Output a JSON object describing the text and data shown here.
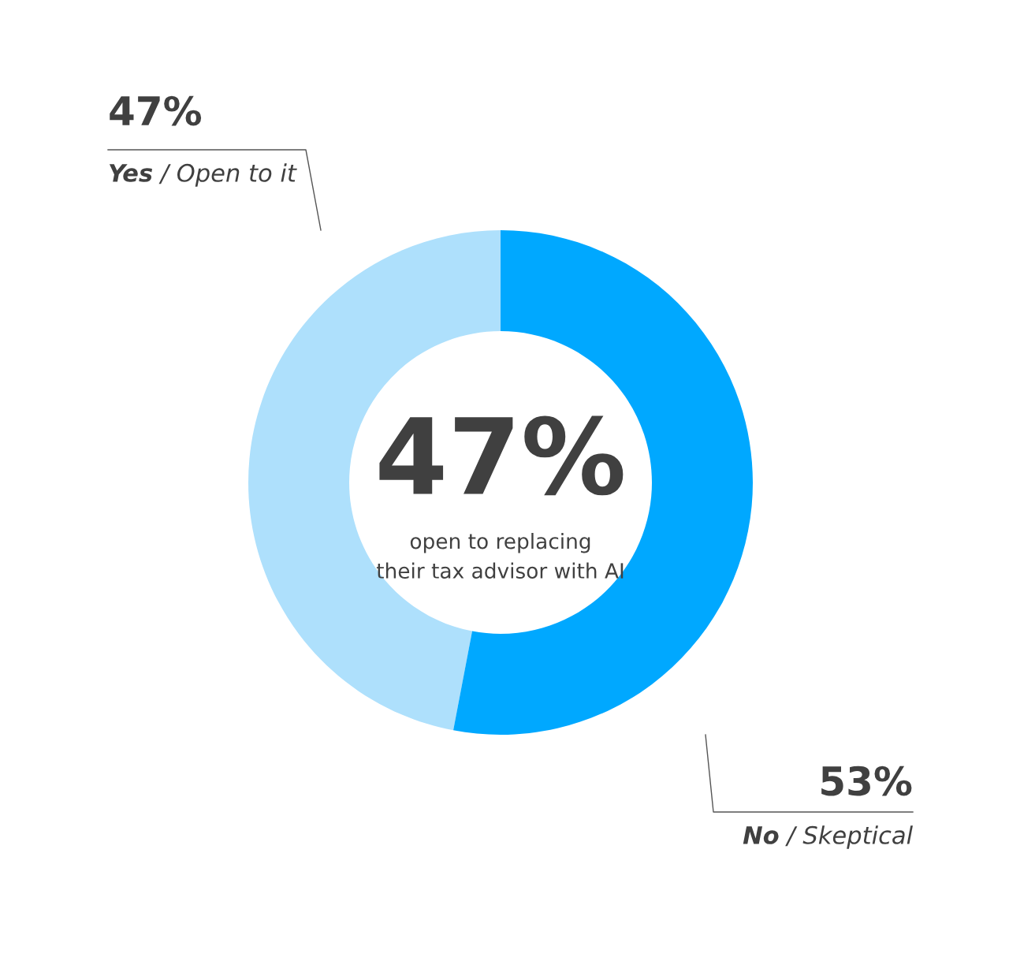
{
  "chart_data": {
    "type": "donut",
    "categories": [
      "Yes / Open to it",
      "No / Skeptical"
    ],
    "values": [
      47,
      53
    ],
    "colors": [
      "#aee0fc",
      "#00a8ff"
    ],
    "value_labels": [
      "47%",
      "53%"
    ],
    "annotations": [
      "47%",
      "open to replacing\ntheir tax advisor with AI"
    ]
  }
}
